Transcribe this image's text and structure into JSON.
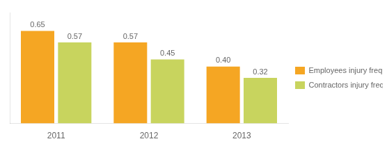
{
  "chart_data": {
    "type": "bar",
    "categories": [
      "2011",
      "2012",
      "2013"
    ],
    "series": [
      {
        "name": "Employees injury frequency rate",
        "color": "#F5A623",
        "values": [
          0.65,
          0.57,
          0.4
        ],
        "value_labels": [
          "0.65",
          "0.57",
          "0.40"
        ]
      },
      {
        "name": "Contractors injury frequency rate",
        "color": "#C8D45E",
        "values": [
          0.57,
          0.45,
          0.32
        ],
        "value_labels": [
          "0.57",
          "0.45",
          "0.32"
        ]
      }
    ],
    "ylim": [
      0,
      0.78
    ],
    "grid": false,
    "legend": "right",
    "data_labels": true,
    "tick_labels": "x"
  }
}
